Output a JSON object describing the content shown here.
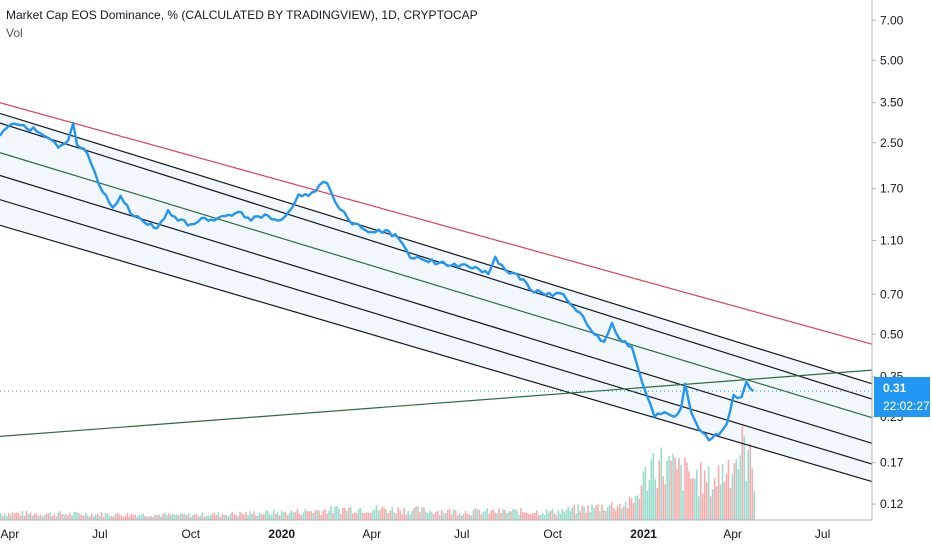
{
  "legend": {
    "title": "Market Cap EOS Dominance, % (CALCULATED BY TRADINGVIEW), 1D, CRYPTOCAP",
    "vol_label": "Vol"
  },
  "price_badge": {
    "price": "0.31",
    "countdown": "22:02:27"
  },
  "colors": {
    "series": "#2196f3",
    "channel": "#131722",
    "channel_mid": "#2e6b3e",
    "upper_resistance": "#e0405a",
    "trend_line": "#2e6b3e",
    "vol_up": "#8fd8c9",
    "vol_down": "#f5a3a3",
    "channel_fill": "#eef5fd"
  },
  "chart_data": {
    "type": "line",
    "scale": "log",
    "ylim": [
      0.105,
      8.3
    ],
    "xlim": [
      "2019-03-22",
      "2021-08-20"
    ],
    "y_ticks": [
      0.12,
      0.17,
      0.25,
      0.35,
      0.5,
      0.7,
      1.1,
      1.7,
      2.5,
      3.5,
      5.0,
      7.0
    ],
    "y_tick_labels": [
      "0.12",
      "0.17",
      "0.25",
      "0.35",
      "0.50",
      "0.70",
      "1.10",
      "1.70",
      "2.50",
      "3.50",
      "5.00",
      "7.00"
    ],
    "x_ticks": [
      {
        "label": "Apr",
        "date": "2019-04-01",
        "bold": false
      },
      {
        "label": "Jul",
        "date": "2019-07-01",
        "bold": false
      },
      {
        "label": "Oct",
        "date": "2019-10-01",
        "bold": false
      },
      {
        "label": "2020",
        "date": "2020-01-01",
        "bold": true
      },
      {
        "label": "Apr",
        "date": "2020-04-01",
        "bold": false
      },
      {
        "label": "Jul",
        "date": "2020-07-01",
        "bold": false
      },
      {
        "label": "Oct",
        "date": "2020-10-01",
        "bold": false
      },
      {
        "label": "2021",
        "date": "2021-01-01",
        "bold": true
      },
      {
        "label": "Apr",
        "date": "2021-04-01",
        "bold": false
      },
      {
        "label": "Jul",
        "date": "2021-07-01",
        "bold": false
      }
    ],
    "last_value": 0.31,
    "series": [
      {
        "values": [
          [
            "2019-03-22",
            2.65
          ],
          [
            "2019-04-01",
            2.9
          ],
          [
            "2019-04-15",
            2.9
          ],
          [
            "2019-04-28",
            2.75
          ],
          [
            "2019-05-10",
            2.6
          ],
          [
            "2019-05-20",
            2.4
          ],
          [
            "2019-05-30",
            2.55
          ],
          [
            "2019-06-04",
            2.95
          ],
          [
            "2019-06-08",
            2.45
          ],
          [
            "2019-06-18",
            2.3
          ],
          [
            "2019-06-26",
            1.95
          ],
          [
            "2019-07-04",
            1.65
          ],
          [
            "2019-07-14",
            1.45
          ],
          [
            "2019-07-22",
            1.6
          ],
          [
            "2019-08-01",
            1.38
          ],
          [
            "2019-08-15",
            1.28
          ],
          [
            "2019-08-28",
            1.22
          ],
          [
            "2019-09-08",
            1.42
          ],
          [
            "2019-09-18",
            1.3
          ],
          [
            "2019-10-01",
            1.26
          ],
          [
            "2019-10-12",
            1.33
          ],
          [
            "2019-10-25",
            1.3
          ],
          [
            "2019-11-05",
            1.35
          ],
          [
            "2019-11-18",
            1.4
          ],
          [
            "2019-12-01",
            1.3
          ],
          [
            "2019-12-15",
            1.37
          ],
          [
            "2019-12-28",
            1.3
          ],
          [
            "2020-01-08",
            1.4
          ],
          [
            "2020-01-18",
            1.62
          ],
          [
            "2020-01-28",
            1.6
          ],
          [
            "2020-02-08",
            1.75
          ],
          [
            "2020-02-16",
            1.78
          ],
          [
            "2020-02-24",
            1.52
          ],
          [
            "2020-03-04",
            1.4
          ],
          [
            "2020-03-12",
            1.26
          ],
          [
            "2020-03-22",
            1.22
          ],
          [
            "2020-04-01",
            1.18
          ],
          [
            "2020-04-15",
            1.2
          ],
          [
            "2020-04-28",
            1.12
          ],
          [
            "2020-05-10",
            0.95
          ],
          [
            "2020-05-25",
            0.93
          ],
          [
            "2020-06-08",
            0.91
          ],
          [
            "2020-06-20",
            0.89
          ],
          [
            "2020-07-01",
            0.9
          ],
          [
            "2020-07-15",
            0.88
          ],
          [
            "2020-07-28",
            0.83
          ],
          [
            "2020-08-04",
            0.96
          ],
          [
            "2020-08-14",
            0.86
          ],
          [
            "2020-08-26",
            0.83
          ],
          [
            "2020-09-08",
            0.73
          ],
          [
            "2020-09-20",
            0.71
          ],
          [
            "2020-10-01",
            0.69
          ],
          [
            "2020-10-12",
            0.7
          ],
          [
            "2020-10-22",
            0.63
          ],
          [
            "2020-11-01",
            0.58
          ],
          [
            "2020-11-12",
            0.5
          ],
          [
            "2020-11-22",
            0.47
          ],
          [
            "2020-11-30",
            0.55
          ],
          [
            "2020-12-10",
            0.47
          ],
          [
            "2020-12-20",
            0.45
          ],
          [
            "2020-12-26",
            0.38
          ],
          [
            "2021-01-04",
            0.3
          ],
          [
            "2021-01-12",
            0.25
          ],
          [
            "2021-01-22",
            0.26
          ],
          [
            "2021-02-01",
            0.25
          ],
          [
            "2021-02-08",
            0.27
          ],
          [
            "2021-02-12",
            0.33
          ],
          [
            "2021-02-18",
            0.26
          ],
          [
            "2021-02-26",
            0.225
          ],
          [
            "2021-03-08",
            0.205
          ],
          [
            "2021-03-18",
            0.215
          ],
          [
            "2021-03-26",
            0.235
          ],
          [
            "2021-04-02",
            0.3
          ],
          [
            "2021-04-10",
            0.295
          ],
          [
            "2021-04-15",
            0.335
          ],
          [
            "2021-04-22",
            0.31
          ]
        ]
      }
    ],
    "drawn_lines": [
      {
        "role": "upper-resistance",
        "from": [
          "2019-03-22",
          3.5
        ],
        "to": [
          "2021-08-20",
          0.46
        ]
      },
      {
        "role": "channel",
        "from": [
          "2019-03-22",
          3.2
        ],
        "to": [
          "2021-08-20",
          0.33
        ]
      },
      {
        "role": "channel",
        "from": [
          "2019-03-22",
          2.95
        ],
        "to": [
          "2021-08-20",
          0.29
        ]
      },
      {
        "role": "channel-mid",
        "from": [
          "2019-03-22",
          2.3
        ],
        "to": [
          "2021-08-20",
          0.248
        ]
      },
      {
        "role": "channel",
        "from": [
          "2019-03-22",
          1.9
        ],
        "to": [
          "2021-08-20",
          0.2
        ]
      },
      {
        "role": "channel",
        "from": [
          "2019-03-22",
          1.55
        ],
        "to": [
          "2021-08-20",
          0.168
        ]
      },
      {
        "role": "channel",
        "from": [
          "2019-03-22",
          1.25
        ],
        "to": [
          "2021-08-20",
          0.145
        ]
      },
      {
        "role": "trend-line",
        "from": [
          "2019-03-22",
          0.212
        ],
        "to": [
          "2021-08-20",
          0.37
        ]
      }
    ],
    "volume": {
      "note": "relative volume, 0-1 scale",
      "levels": [
        [
          "2019-03-22",
          0.08
        ],
        [
          "2019-10-01",
          0.06
        ],
        [
          "2020-01-01",
          0.09
        ],
        [
          "2020-03-15",
          0.14
        ],
        [
          "2020-07-01",
          0.1
        ],
        [
          "2020-10-01",
          0.1
        ],
        [
          "2020-12-20",
          0.2
        ],
        [
          "2021-01-10",
          0.7
        ],
        [
          "2021-02-10",
          0.55
        ],
        [
          "2021-03-10",
          0.45
        ],
        [
          "2021-04-12",
          0.85
        ],
        [
          "2021-04-22",
          0.55
        ]
      ]
    }
  }
}
